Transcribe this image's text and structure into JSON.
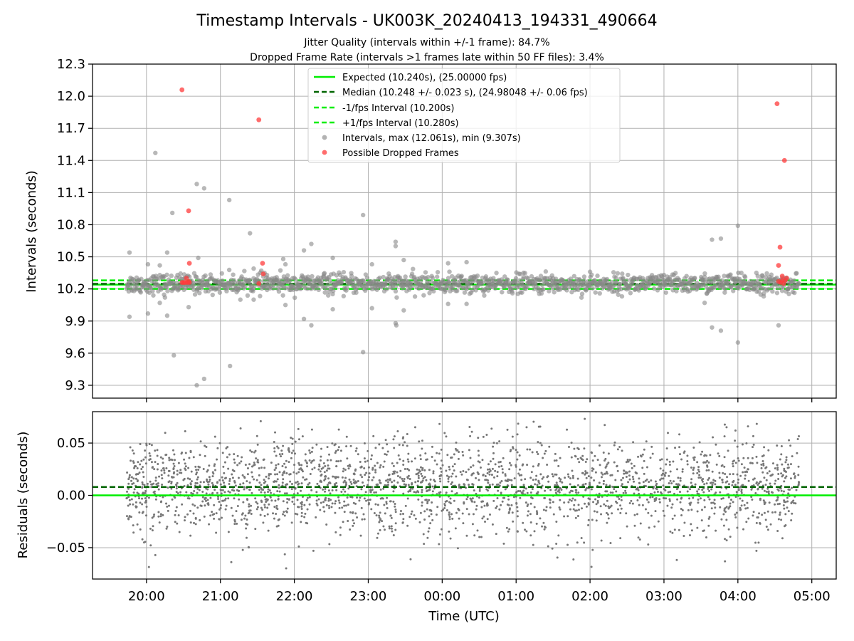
{
  "chart_data": [
    {
      "type": "scatter",
      "title": "Timestamp Intervals - UK003K_20240413_194331_490664",
      "subtitle_lines": [
        "Jitter Quality (intervals within +/-1 frame): 84.7%",
        "Dropped Frame Rate (intervals >1 frames late within 50 FF files): 3.4%"
      ],
      "xlabel": "",
      "ylabel": "Intervals (seconds)",
      "xlim": [
        -0.73,
        9.33
      ],
      "ylim": [
        9.18,
        12.3
      ],
      "y_ticks": [
        9.3,
        9.6,
        9.9,
        10.2,
        10.5,
        10.8,
        11.1,
        11.4,
        11.7,
        12.0,
        12.3
      ],
      "y_tick_labels": [
        "9.3",
        "9.6",
        "9.9",
        "10.2",
        "10.5",
        "10.8",
        "11.1",
        "11.4",
        "11.7",
        "12.0",
        "12.3"
      ],
      "grid": true,
      "legend_position": "top-center",
      "legend": [
        {
          "label": "Expected (10.240s), (25.00000 fps)",
          "style": "solid-line",
          "color": "#00ee00"
        },
        {
          "label": "Median (10.248 +/- 0.023 s), (24.98048 +/- 0.06 fps)",
          "style": "dashed-line",
          "color": "#006400"
        },
        {
          "label": "-1/fps Interval (10.200s)",
          "style": "dashed-line",
          "color": "#00ee00"
        },
        {
          "label": "+1/fps Interval (10.280s)",
          "style": "dashed-line",
          "color": "#00ee00"
        },
        {
          "label": "Intervals, max (12.061s), min (9.307s)",
          "style": "marker",
          "color": "#888888"
        },
        {
          "label": "Possible Dropped Frames",
          "style": "marker",
          "color": "#ff3b3b"
        }
      ],
      "reference_lines": [
        {
          "name": "expected",
          "y": 10.24,
          "color": "#00ee00",
          "dash": false
        },
        {
          "name": "median",
          "y": 10.248,
          "color": "#006400",
          "dash": true
        },
        {
          "name": "minus-1fps",
          "y": 10.2,
          "color": "#00ee00",
          "dash": true
        },
        {
          "name": "plus-1fps",
          "y": 10.28,
          "color": "#00ee00",
          "dash": true
        }
      ],
      "series": [
        {
          "name": "Intervals, max (12.061s), min (9.307s)",
          "color": "#888888",
          "points": [
            {
              "x": -0.23,
              "y": 10.54
            },
            {
              "x": -0.23,
              "y": 9.94
            },
            {
              "x": 0.02,
              "y": 10.43
            },
            {
              "x": 0.02,
              "y": 9.97
            },
            {
              "x": 0.12,
              "y": 11.47
            },
            {
              "x": 0.18,
              "y": 10.42
            },
            {
              "x": 0.18,
              "y": 10.07
            },
            {
              "x": 0.25,
              "y": 10.12
            },
            {
              "x": 0.28,
              "y": 10.54
            },
            {
              "x": 0.28,
              "y": 9.95
            },
            {
              "x": 0.35,
              "y": 10.91
            },
            {
              "x": 0.37,
              "y": 9.58
            },
            {
              "x": 0.42,
              "y": 10.33
            },
            {
              "x": 0.57,
              "y": 10.03
            },
            {
              "x": 0.68,
              "y": 11.18
            },
            {
              "x": 0.68,
              "y": 9.3
            },
            {
              "x": 0.7,
              "y": 10.49
            },
            {
              "x": 0.78,
              "y": 11.14
            },
            {
              "x": 0.78,
              "y": 9.36
            },
            {
              "x": 0.82,
              "y": 10.26
            },
            {
              "x": 1.12,
              "y": 11.03
            },
            {
              "x": 1.13,
              "y": 9.48
            },
            {
              "x": 1.27,
              "y": 10.1
            },
            {
              "x": 1.4,
              "y": 10.72
            },
            {
              "x": 1.45,
              "y": 10.39
            },
            {
              "x": 1.45,
              "y": 10.1
            },
            {
              "x": 1.63,
              "y": 10.33
            },
            {
              "x": 1.8,
              "y": 10.28
            },
            {
              "x": 1.85,
              "y": 10.48
            },
            {
              "x": 1.88,
              "y": 10.43
            },
            {
              "x": 1.88,
              "y": 10.05
            },
            {
              "x": 2.13,
              "y": 10.56
            },
            {
              "x": 2.13,
              "y": 9.92
            },
            {
              "x": 2.23,
              "y": 10.62
            },
            {
              "x": 2.23,
              "y": 9.86
            },
            {
              "x": 2.4,
              "y": 10.34
            },
            {
              "x": 2.52,
              "y": 10.49
            },
            {
              "x": 2.52,
              "y": 10.01
            },
            {
              "x": 2.72,
              "y": 10.28
            },
            {
              "x": 2.93,
              "y": 10.89
            },
            {
              "x": 2.93,
              "y": 9.61
            },
            {
              "x": 3.05,
              "y": 10.43
            },
            {
              "x": 3.05,
              "y": 10.02
            },
            {
              "x": 3.37,
              "y": 10.64
            },
            {
              "x": 3.37,
              "y": 10.6
            },
            {
              "x": 3.37,
              "y": 9.88
            },
            {
              "x": 3.38,
              "y": 9.86
            },
            {
              "x": 3.48,
              "y": 10.47
            },
            {
              "x": 3.48,
              "y": 10.0
            },
            {
              "x": 3.7,
              "y": 10.3
            },
            {
              "x": 4.08,
              "y": 10.44
            },
            {
              "x": 4.08,
              "y": 10.06
            },
            {
              "x": 4.33,
              "y": 10.45
            },
            {
              "x": 4.33,
              "y": 10.06
            },
            {
              "x": 4.6,
              "y": 10.27
            },
            {
              "x": 5.1,
              "y": 10.35
            },
            {
              "x": 5.5,
              "y": 10.3
            },
            {
              "x": 6.0,
              "y": 10.36
            },
            {
              "x": 6.5,
              "y": 10.28
            },
            {
              "x": 7.0,
              "y": 10.33
            },
            {
              "x": 7.6,
              "y": 10.29
            },
            {
              "x": 7.65,
              "y": 10.66
            },
            {
              "x": 7.65,
              "y": 9.84
            },
            {
              "x": 7.77,
              "y": 10.67
            },
            {
              "x": 7.77,
              "y": 9.81
            },
            {
              "x": 7.55,
              "y": 10.07
            },
            {
              "x": 8.0,
              "y": 10.79
            },
            {
              "x": 8.0,
              "y": 9.7
            },
            {
              "x": 8.25,
              "y": 10.35
            },
            {
              "x": 8.55,
              "y": 9.86
            }
          ],
          "band_note": "dense cluster of points between 10.10 and 10.38 s across 19:45-04:50"
        },
        {
          "name": "Possible Dropped Frames",
          "color": "#ff3b3b",
          "points": [
            {
              "x": 0.48,
              "y": 12.06
            },
            {
              "x": 0.57,
              "y": 10.93
            },
            {
              "x": 0.58,
              "y": 10.44
            },
            {
              "x": 0.48,
              "y": 10.26
            },
            {
              "x": 0.5,
              "y": 10.26
            },
            {
              "x": 0.52,
              "y": 10.26
            },
            {
              "x": 0.55,
              "y": 10.26
            },
            {
              "x": 0.57,
              "y": 10.27
            },
            {
              "x": 0.58,
              "y": 10.26
            },
            {
              "x": 0.54,
              "y": 10.3
            },
            {
              "x": 1.52,
              "y": 11.78
            },
            {
              "x": 1.57,
              "y": 10.44
            },
            {
              "x": 1.58,
              "y": 10.34
            },
            {
              "x": 1.52,
              "y": 10.25
            },
            {
              "x": 8.53,
              "y": 11.93
            },
            {
              "x": 8.63,
              "y": 11.4
            },
            {
              "x": 8.57,
              "y": 10.59
            },
            {
              "x": 8.55,
              "y": 10.42
            },
            {
              "x": 8.55,
              "y": 10.27
            },
            {
              "x": 8.58,
              "y": 10.26
            },
            {
              "x": 8.6,
              "y": 10.28
            },
            {
              "x": 8.62,
              "y": 10.25
            },
            {
              "x": 8.64,
              "y": 10.28
            },
            {
              "x": 8.6,
              "y": 10.32
            },
            {
              "x": 8.66,
              "y": 10.3
            }
          ]
        }
      ]
    },
    {
      "type": "scatter",
      "xlabel": "Time (UTC)",
      "ylabel": "Residuals (seconds)",
      "xlim": [
        -0.73,
        9.33
      ],
      "ylim": [
        -0.08,
        0.08
      ],
      "x_ticks": [
        0,
        1,
        2,
        3,
        4,
        5,
        6,
        7,
        8,
        9
      ],
      "x_tick_labels": [
        "20:00",
        "21:00",
        "22:00",
        "23:00",
        "00:00",
        "01:00",
        "02:00",
        "03:00",
        "04:00",
        "05:00"
      ],
      "y_ticks": [
        -0.05,
        0.0,
        0.05
      ],
      "y_tick_labels": [
        "−0.05",
        "0.00",
        "0.05"
      ],
      "grid": true,
      "reference_lines": [
        {
          "name": "zero",
          "y": 0.0,
          "color": "#00ee00",
          "dash": false
        },
        {
          "name": "median-offset",
          "y": 0.008,
          "color": "#006400",
          "dash": true
        }
      ],
      "series": [
        {
          "name": "Residuals",
          "color": "#777777",
          "x_range": [
            -0.27,
            8.83
          ],
          "distribution": "approximately normal, centered near +0.008 s, sd about 0.023 s"
        }
      ]
    }
  ]
}
